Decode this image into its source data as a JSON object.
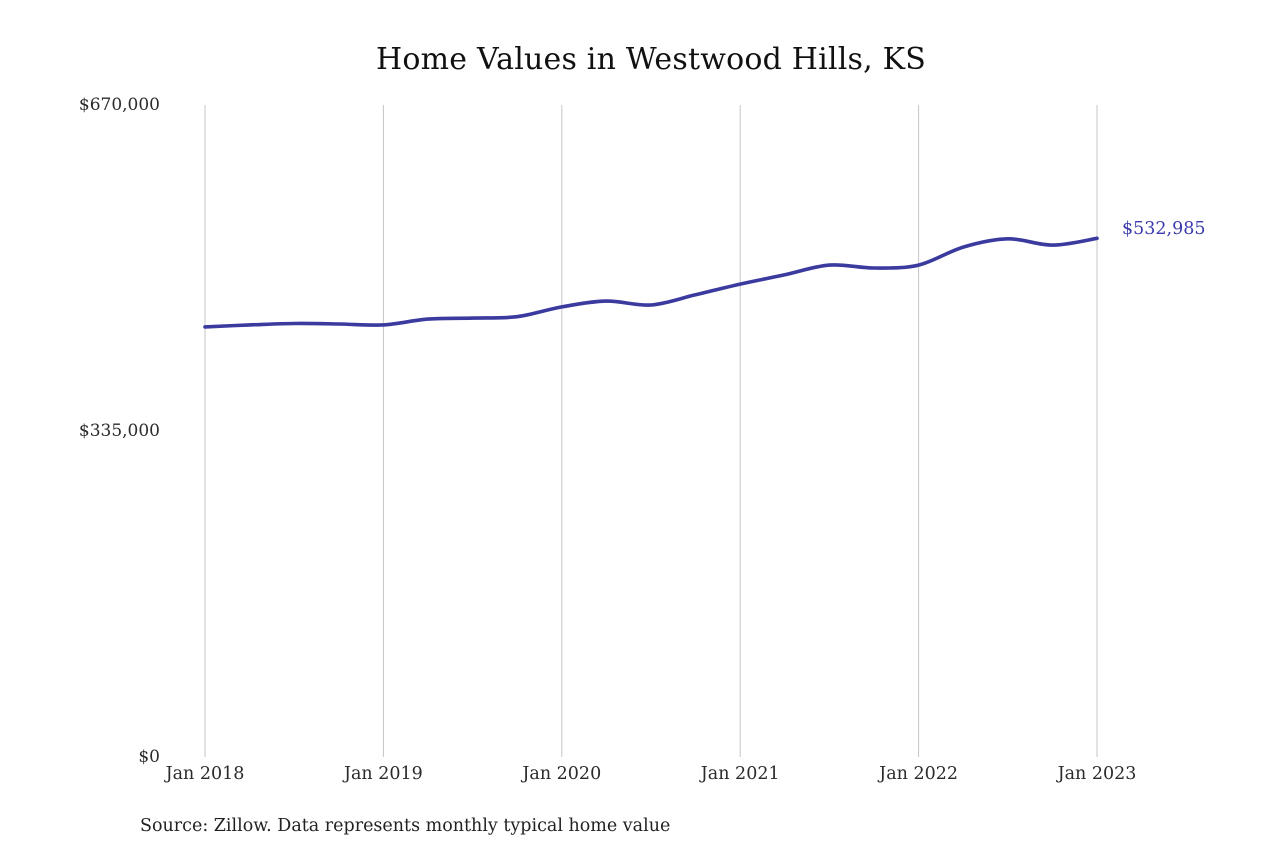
{
  "title": "Home Values in Westwood Hills, KS",
  "source_note": "Source: Zillow. Data represents monthly typical home value",
  "end_label": "$532,985",
  "colors": {
    "line": "#3a3a9f",
    "annotation": "#3b3bae",
    "grid": "#c5c5c5",
    "title_text": "#111111",
    "tick_text": "#2b2b2b"
  },
  "chart_data": {
    "type": "line",
    "title": "Home Values in Westwood Hills, KS",
    "xlabel": "",
    "ylabel": "",
    "ylim": [
      0,
      670000
    ],
    "grid": "vertical-only",
    "legend": "none",
    "x": [
      "Jan 2018",
      "Apr 2018",
      "Jul 2018",
      "Oct 2018",
      "Jan 2019",
      "Apr 2019",
      "Jul 2019",
      "Oct 2019",
      "Jan 2020",
      "Apr 2020",
      "Jul 2020",
      "Oct 2020",
      "Jan 2021",
      "Apr 2021",
      "Jul 2021",
      "Oct 2021",
      "Jan 2022",
      "Apr 2022",
      "Jul 2022",
      "Oct 2022",
      "Jan 2023"
    ],
    "values": [
      442000,
      444000,
      445500,
      445000,
      444000,
      450000,
      451000,
      452500,
      462500,
      468500,
      464500,
      475000,
      486000,
      495500,
      505500,
      502500,
      505500,
      524000,
      532500,
      526000,
      532985
    ],
    "last_point_label": "$532,985",
    "y_ticks": [
      {
        "label": "$0",
        "value": 0
      },
      {
        "label": "$335,000",
        "value": 335000
      },
      {
        "label": "$670,000",
        "value": 670000
      }
    ],
    "x_ticks": [
      {
        "label": "Jan 2018",
        "index": 0
      },
      {
        "label": "Jan 2019",
        "index": 4
      },
      {
        "label": "Jan 2020",
        "index": 8
      },
      {
        "label": "Jan 2021",
        "index": 12
      },
      {
        "label": "Jan 2022",
        "index": 16
      },
      {
        "label": "Jan 2023",
        "index": 20
      }
    ]
  }
}
